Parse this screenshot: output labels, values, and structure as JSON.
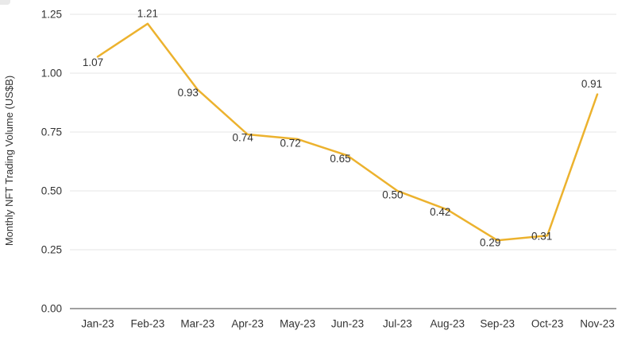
{
  "chart_data": {
    "type": "line",
    "title": "",
    "xlabel": "",
    "ylabel": "Monthly NFT Trading Volume (US$B)",
    "categories": [
      "Jan-23",
      "Feb-23",
      "Mar-23",
      "Apr-23",
      "May-23",
      "Jun-23",
      "Jul-23",
      "Aug-23",
      "Sep-23",
      "Oct-23",
      "Nov-23"
    ],
    "series": [
      {
        "name": "Monthly NFT Trading Volume",
        "values": [
          1.07,
          1.21,
          0.93,
          0.74,
          0.72,
          0.65,
          0.5,
          0.42,
          0.29,
          0.31,
          0.91
        ],
        "point_labels": [
          "1.07",
          "1.21",
          "0.93",
          "0.74",
          "0.72",
          "0.65",
          "0.50",
          "0.42",
          "0.29",
          "0.31",
          "0.91"
        ],
        "color": "#ECB22E"
      }
    ],
    "ylim": [
      0,
      1.25
    ],
    "yticks": [
      0,
      0.25,
      0.5,
      0.75,
      1,
      1.25
    ],
    "ytick_labels": [
      "0.00",
      "0.25",
      "0.50",
      "0.75",
      "1.00",
      "1.25"
    ],
    "grid": "horizontal",
    "legend": "none",
    "colors": {
      "line": "#ECB22E",
      "gridline": "#e6e6e6",
      "zero_axis": "#808080",
      "text": "#333333"
    }
  }
}
